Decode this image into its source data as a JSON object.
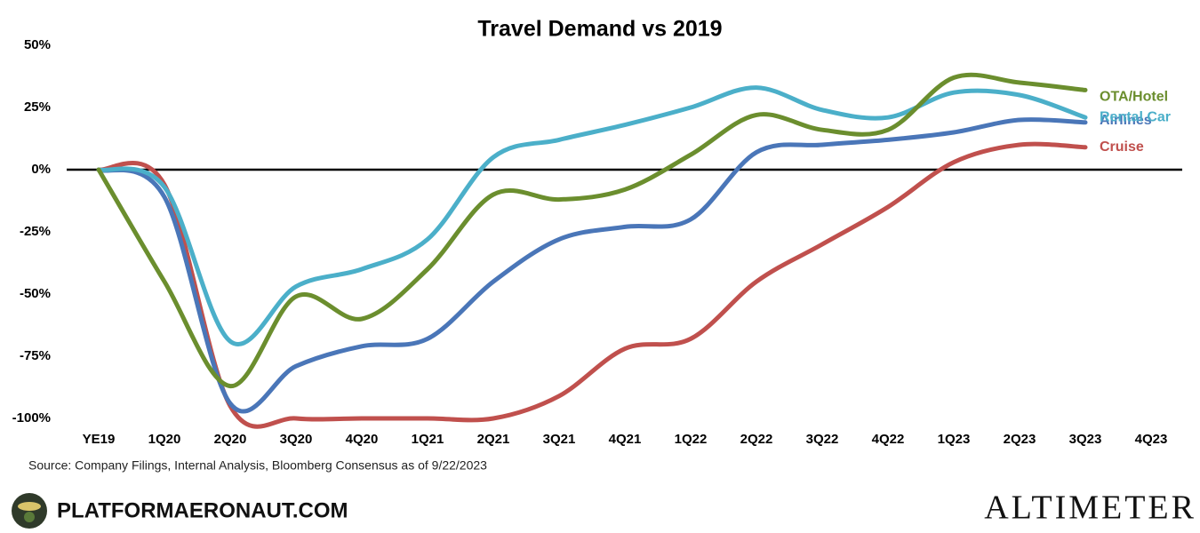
{
  "chart_data": {
    "type": "line",
    "title": "Travel Demand vs 2019",
    "categories": [
      "YE19",
      "1Q20",
      "2Q20",
      "3Q20",
      "4Q20",
      "1Q21",
      "2Q21",
      "3Q21",
      "4Q21",
      "1Q22",
      "2Q22",
      "3Q22",
      "4Q22",
      "1Q23",
      "2Q23",
      "3Q23",
      "4Q23"
    ],
    "series": [
      {
        "name": "OTA/Hotel",
        "color": "#6b8e2e",
        "values": [
          0,
          -45,
          -87,
          -51,
          -60,
          -40,
          -10,
          -12,
          -8,
          6,
          22,
          16,
          16,
          37,
          35,
          32,
          null
        ]
      },
      {
        "name": "Rental Car",
        "color": "#4bafc9",
        "values": [
          0,
          -7,
          -69,
          -47,
          -40,
          -28,
          5,
          12,
          18,
          25,
          33,
          24,
          21,
          31,
          30,
          21,
          null
        ]
      },
      {
        "name": "Airlines",
        "color": "#4a76b8",
        "values": [
          0,
          -11,
          -94,
          -79,
          -71,
          -68,
          -45,
          -28,
          -23,
          -20,
          7,
          10,
          12,
          15,
          20,
          19,
          null
        ]
      },
      {
        "name": "Cruise",
        "color": "#c0504d",
        "values": [
          0,
          -6,
          -95,
          -100,
          -100,
          -100,
          -100,
          -91,
          -72,
          -68,
          -45,
          -30,
          -15,
          3,
          10,
          9,
          null
        ]
      }
    ],
    "ylim": [
      -100,
      50
    ],
    "yticks": [
      {
        "value": 50,
        "label": "50%"
      },
      {
        "value": 25,
        "label": "25%"
      },
      {
        "value": 0,
        "label": "0%"
      },
      {
        "value": -25,
        "label": "-25%"
      },
      {
        "value": -50,
        "label": "-50%"
      },
      {
        "value": -75,
        "label": "-75%"
      },
      {
        "value": -100,
        "label": "-100%"
      }
    ],
    "source": "Source: Company Filings, Internal Analysis, Bloomberg Consensus as of 9/22/2023"
  },
  "footer": {
    "site": "PLATFORMAERONAUT.COM",
    "brand": "ALTIMETER"
  }
}
